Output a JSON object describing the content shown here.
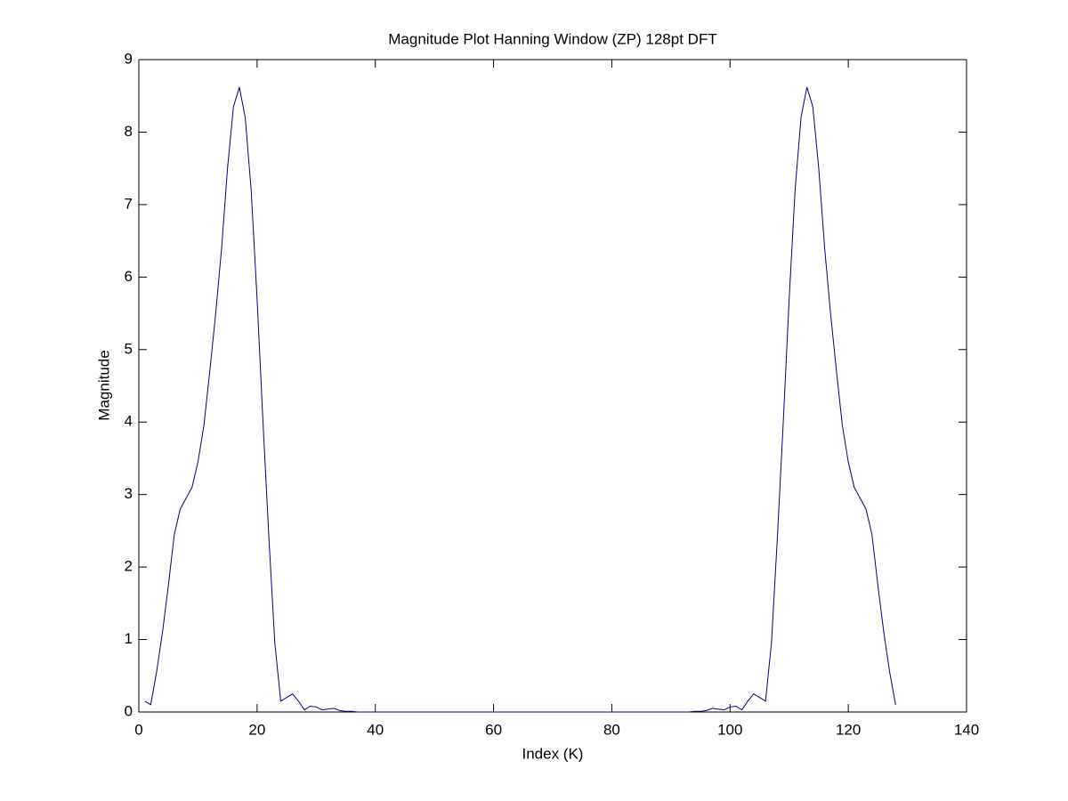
{
  "chart_data": {
    "type": "line",
    "title": "Magnitude Plot Hanning Window (ZP) 128pt DFT",
    "x_label": "Index (K)",
    "y_label": "Magnitude",
    "color": "#00007f",
    "x": [
      1,
      2,
      3,
      4,
      5,
      6,
      7,
      8,
      9,
      10,
      11,
      12,
      13,
      14,
      15,
      16,
      17,
      18,
      19,
      20,
      21,
      22,
      23,
      24,
      25,
      26,
      27,
      28,
      29,
      30,
      31,
      32,
      33,
      34,
      35,
      36,
      37,
      38,
      39,
      40,
      41,
      42,
      43,
      44,
      45,
      46,
      47,
      48,
      49,
      50,
      51,
      52,
      53,
      54,
      55,
      56,
      57,
      58,
      59,
      60,
      61,
      62,
      63,
      64,
      65,
      66,
      67,
      68,
      69,
      70,
      71,
      72,
      73,
      74,
      75,
      76,
      77,
      78,
      79,
      80,
      81,
      82,
      83,
      84,
      85,
      86,
      87,
      88,
      89,
      90,
      91,
      92,
      93,
      94,
      95,
      96,
      97,
      98,
      99,
      100,
      101,
      102,
      103,
      104,
      105,
      106,
      107,
      108,
      109,
      110,
      111,
      112,
      113,
      114,
      115,
      116,
      117,
      118,
      119,
      120,
      121,
      122,
      123,
      124,
      125,
      126,
      127,
      128
    ],
    "values": [
      0.15,
      0.1,
      0.55,
      1.1,
      1.75,
      2.45,
      2.8,
      2.95,
      3.1,
      3.45,
      3.95,
      4.7,
      5.5,
      6.4,
      7.5,
      8.35,
      8.62,
      8.2,
      7.2,
      5.7,
      4.0,
      2.4,
      0.95,
      0.15,
      0.2,
      0.25,
      0.15,
      0.03,
      0.08,
      0.07,
      0.03,
      0.04,
      0.05,
      0.02,
      0.01,
      0.01,
      0,
      0,
      0,
      0,
      0,
      0,
      0,
      0,
      0,
      0,
      0,
      0,
      0,
      0,
      0,
      0,
      0,
      0,
      0,
      0,
      0,
      0,
      0,
      0,
      0,
      0,
      0,
      0,
      0,
      0,
      0,
      0,
      0,
      0,
      0,
      0,
      0,
      0,
      0,
      0,
      0,
      0,
      0,
      0,
      0,
      0,
      0,
      0,
      0,
      0,
      0,
      0,
      0,
      0,
      0,
      0,
      0,
      0.01,
      0.01,
      0.02,
      0.05,
      0.04,
      0.03,
      0.07,
      0.08,
      0.03,
      0.15,
      0.25,
      0.2,
      0.15,
      0.95,
      2.4,
      4.0,
      5.7,
      7.2,
      8.2,
      8.62,
      8.35,
      7.5,
      6.4,
      5.5,
      4.7,
      3.95,
      3.45,
      3.1,
      2.95,
      2.8,
      2.45,
      1.75,
      1.1,
      0.55,
      0.1
    ],
    "xlim": [
      0,
      140
    ],
    "xticks": [
      0,
      20,
      40,
      60,
      80,
      100,
      120,
      140
    ],
    "ylim": [
      0,
      9
    ],
    "yticks": [
      0,
      1,
      2,
      3,
      4,
      5,
      6,
      7,
      8,
      9
    ]
  }
}
